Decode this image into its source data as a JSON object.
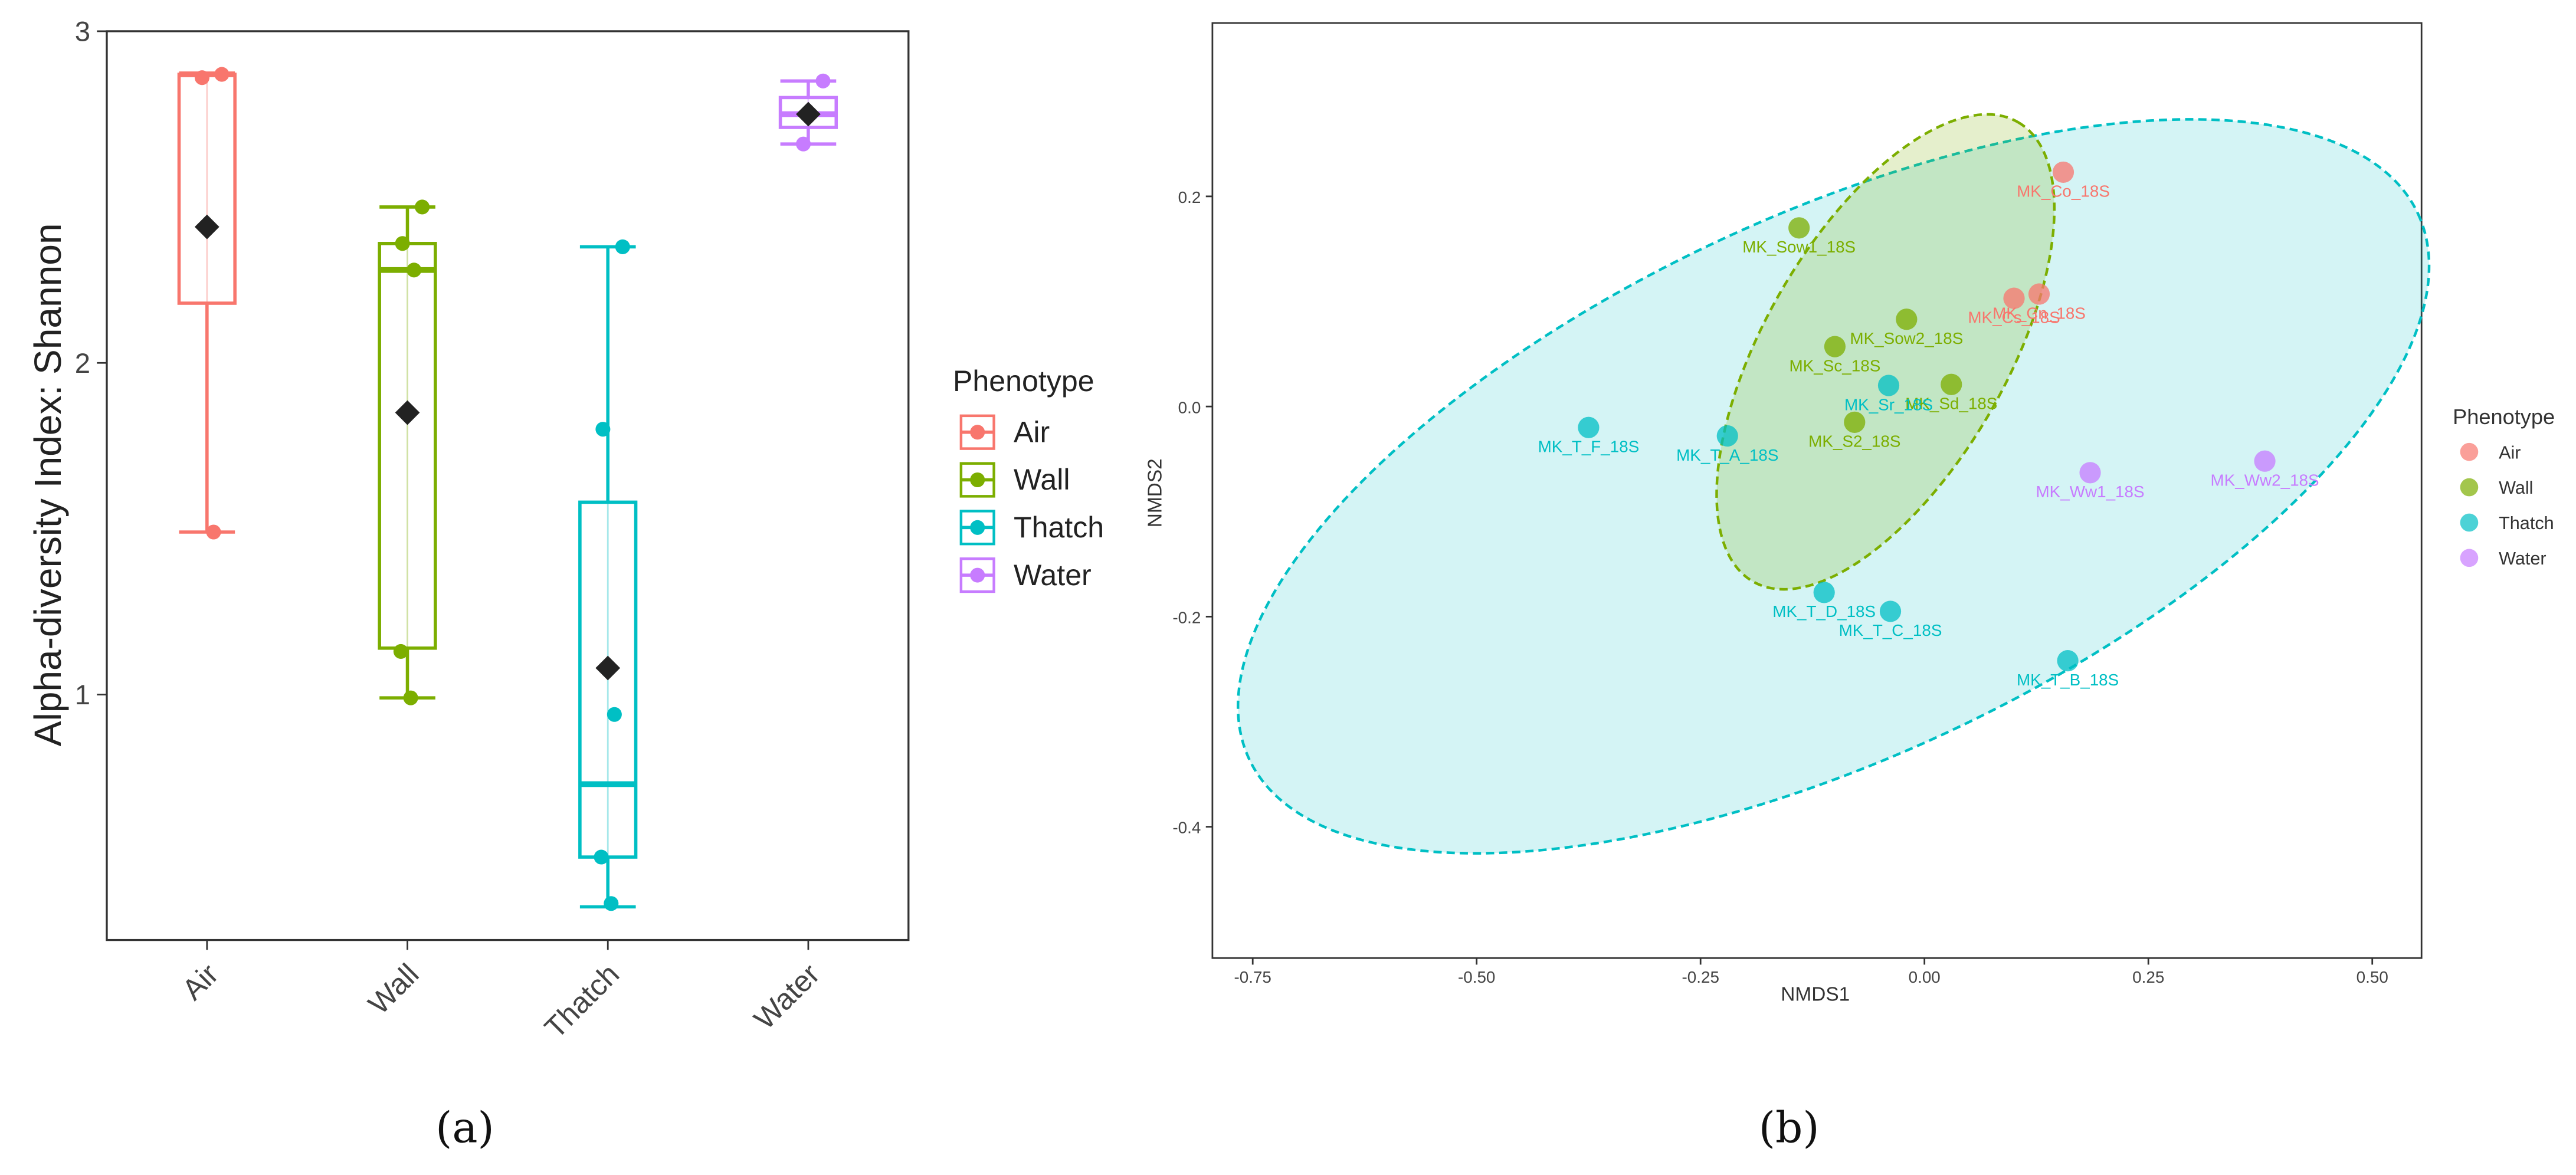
{
  "colors": {
    "Air": "#F8766D",
    "Wall": "#7CAE00",
    "Thatch": "#00BFC4",
    "Water": "#C77CFF",
    "mean": "#222222"
  },
  "captions": {
    "a": "(a)",
    "b": "(b)"
  },
  "chart_data": [
    {
      "type": "box",
      "ylabel": "Alpha-diversity Index: Shannon",
      "xlabel": "",
      "ylim": [
        0.26,
        3.0
      ],
      "yticks": [
        1,
        2,
        3
      ],
      "categories": [
        "Air",
        "Wall",
        "Thatch",
        "Water"
      ],
      "legend": {
        "title": "Phenotype",
        "entries": [
          "Air",
          "Wall",
          "Thatch",
          "Water"
        ],
        "position": "right"
      },
      "boxes": [
        {
          "group": "Air",
          "min": 1.49,
          "q1": 2.18,
          "median": 2.87,
          "q3": 2.87,
          "max": 2.87,
          "mean": 2.41,
          "points": [
            2.87,
            2.86,
            1.49
          ]
        },
        {
          "group": "Wall",
          "min": 0.99,
          "q1": 1.14,
          "median": 2.28,
          "q3": 2.36,
          "max": 2.47,
          "mean": 1.85,
          "points": [
            2.47,
            2.36,
            2.28,
            1.13,
            0.99
          ]
        },
        {
          "group": "Thatch",
          "min": 0.36,
          "q1": 0.51,
          "median": 0.73,
          "q3": 1.58,
          "max": 2.35,
          "mean": 1.08,
          "points": [
            2.35,
            1.8,
            0.94,
            0.51,
            0.37
          ]
        },
        {
          "group": "Water",
          "min": 2.66,
          "q1": 2.71,
          "median": 2.75,
          "q3": 2.8,
          "max": 2.85,
          "mean": 2.75,
          "points": [
            2.85,
            2.66
          ]
        }
      ]
    },
    {
      "type": "scatter",
      "xlabel": "NMDS1",
      "ylabel": "NMDS2",
      "xlim": [
        -0.795,
        0.555
      ],
      "ylim": [
        -0.525,
        0.365
      ],
      "xticks": [
        -0.75,
        -0.5,
        -0.25,
        0.0,
        0.25,
        0.5
      ],
      "xtick_labels": [
        "-0.75",
        "-0.50",
        "-0.25",
        "0.00",
        "0.25",
        "0.50"
      ],
      "yticks": [
        0.2,
        0.0,
        -0.2,
        -0.4
      ],
      "ytick_labels": [
        "0.2",
        "0.0",
        "-0.2",
        "-0.4"
      ],
      "legend": {
        "title": "Phenotype",
        "entries": [
          "Air",
          "Wall",
          "Thatch",
          "Water"
        ],
        "position": "right"
      },
      "points": [
        {
          "group": "Air",
          "x": 0.155,
          "y": 0.223,
          "label": "MK_Co_18S"
        },
        {
          "group": "Air",
          "x": 0.1,
          "y": 0.103,
          "label": "MK_Cs_18S"
        },
        {
          "group": "Air",
          "x": 0.128,
          "y": 0.107,
          "label": "MK_Cn_18S"
        },
        {
          "group": "Wall",
          "x": -0.14,
          "y": 0.17,
          "label": "MK_Sow1_18S"
        },
        {
          "group": "Wall",
          "x": -0.02,
          "y": 0.083,
          "label": "MK_Sow2_18S"
        },
        {
          "group": "Wall",
          "x": -0.1,
          "y": 0.057,
          "label": "MK_Sc_18S"
        },
        {
          "group": "Wall",
          "x": 0.03,
          "y": 0.021,
          "label": "MK_Sd_18S"
        },
        {
          "group": "Wall",
          "x": -0.078,
          "y": -0.015,
          "label": "MK_S2_18S"
        },
        {
          "group": "Thatch",
          "x": -0.04,
          "y": 0.02,
          "label": "MK_Sr_18S"
        },
        {
          "group": "Thatch",
          "x": -0.375,
          "y": -0.02,
          "label": "MK_T_F_18S"
        },
        {
          "group": "Thatch",
          "x": -0.22,
          "y": -0.028,
          "label": "MK_T_A_18S"
        },
        {
          "group": "Thatch",
          "x": -0.112,
          "y": -0.177,
          "label": "MK_T_D_18S"
        },
        {
          "group": "Thatch",
          "x": -0.038,
          "y": -0.195,
          "label": "MK_T_C_18S"
        },
        {
          "group": "Thatch",
          "x": 0.16,
          "y": -0.242,
          "label": "MK_T_B_18S"
        },
        {
          "group": "Water",
          "x": 0.185,
          "y": -0.063,
          "label": "MK_Ww1_18S"
        },
        {
          "group": "Water",
          "x": 0.38,
          "y": -0.052,
          "label": "MK_Ww2_18S"
        }
      ],
      "ellipses": [
        {
          "group": "Wall",
          "cx": -0.0435,
          "cy": 0.052,
          "rx": 0.296,
          "ry": 0.115,
          "angle_deg": -60
        },
        {
          "group": "Thatch",
          "cx": -0.1015,
          "cy": -0.076,
          "rx": 0.72,
          "ry": 0.258,
          "angle_deg": -25
        }
      ]
    }
  ]
}
